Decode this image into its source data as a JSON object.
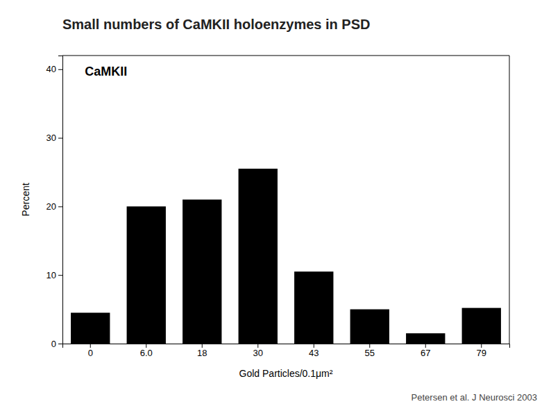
{
  "chart_data": {
    "type": "bar",
    "title": "Small numbers of CaMKII holoenzymes in PSD",
    "categories": [
      "0",
      "6.0",
      "18",
      "30",
      "43",
      "55",
      "67",
      "79"
    ],
    "values": [
      4.5,
      20.0,
      21.0,
      25.5,
      10.5,
      5.0,
      1.5,
      5.2
    ],
    "color": "#000000",
    "xlabel": "Gold Particles/0.1μm²",
    "ylabel": "Percent",
    "ylim": [
      0,
      42
    ],
    "yticks": [
      0,
      10,
      20,
      30,
      40
    ],
    "grid": false,
    "annotations": [
      "CaMKII",
      "Petersen et al. J Neurosci 2003"
    ]
  }
}
